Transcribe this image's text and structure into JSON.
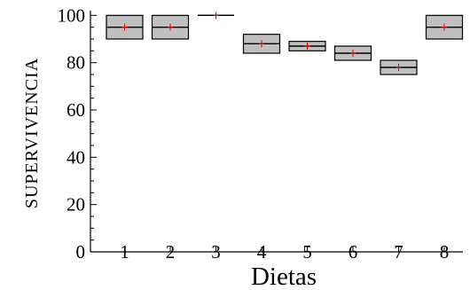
{
  "chart_data": {
    "type": "box",
    "title": "",
    "xlabel": "Dietas",
    "ylabel": "SUPERVIVENCIA",
    "ylim": [
      0,
      102
    ],
    "yticks": [
      0,
      20,
      40,
      60,
      80,
      100
    ],
    "categories": [
      "1",
      "2",
      "3",
      "4",
      "5",
      "6",
      "7",
      "8"
    ],
    "boxes": [
      {
        "category": "1",
        "q1": 90,
        "median": 95,
        "q3": 100,
        "mean": 95
      },
      {
        "category": "2",
        "q1": 90,
        "median": 95,
        "q3": 100,
        "mean": 95
      },
      {
        "category": "3",
        "q1": 100,
        "median": 100,
        "q3": 100,
        "mean": 100
      },
      {
        "category": "4",
        "q1": 84,
        "median": 88,
        "q3": 92,
        "mean": 88
      },
      {
        "category": "5",
        "q1": 85,
        "median": 87,
        "q3": 89,
        "mean": 87
      },
      {
        "category": "6",
        "q1": 81,
        "median": 84,
        "q3": 87,
        "mean": 84
      },
      {
        "category": "7",
        "q1": 75,
        "median": 78,
        "q3": 81,
        "mean": 78
      },
      {
        "category": "8",
        "q1": 90,
        "median": 95,
        "q3": 100,
        "mean": 95
      }
    ],
    "colors": {
      "box_fill": "#c0c0c0",
      "mean_marker": "#e00000",
      "axis": "#000000"
    },
    "grid": false,
    "legend": "none"
  }
}
